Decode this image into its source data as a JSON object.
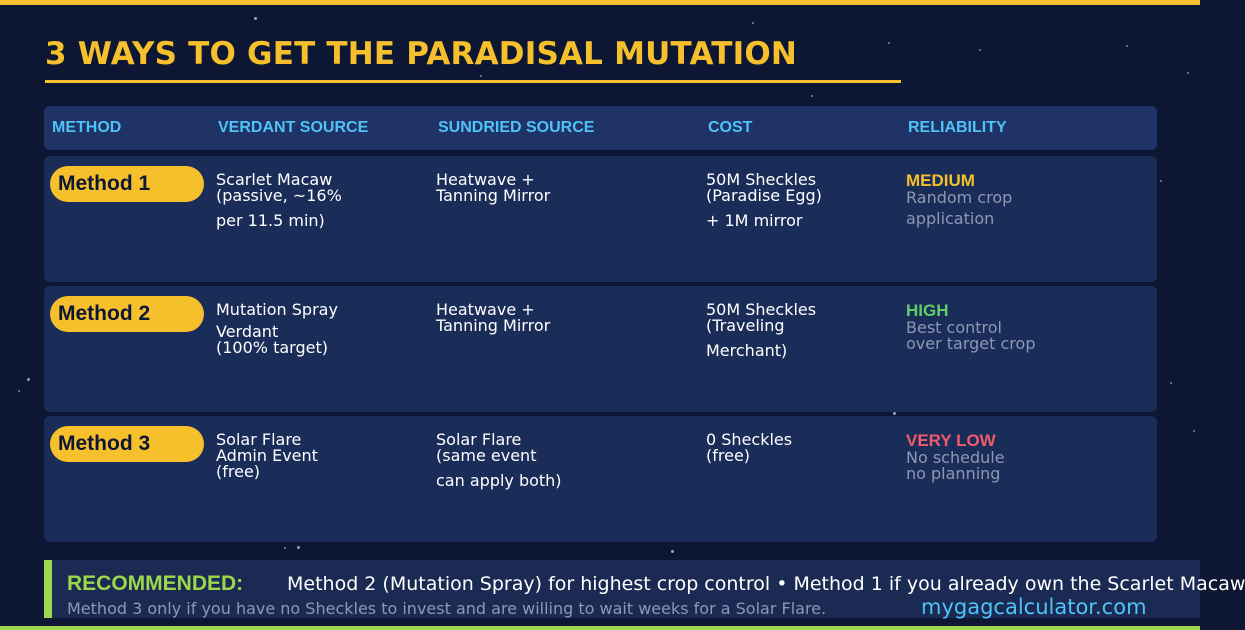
{
  "title": "3 WAYS TO GET THE PARADISAL MUTATION",
  "columns": [
    "METHOD",
    "VERDANT SOURCE",
    "SUNDRIED SOURCE",
    "COST",
    "RELIABILITY"
  ],
  "rows": [
    {
      "method": "Method 1",
      "verdant": [
        "Scarlet Macaw",
        "(passive, ~16%",
        "per 11.5 min)"
      ],
      "sundried": [
        "Heatwave +",
        "Tanning Mirror"
      ],
      "cost": [
        "50M Sheckles",
        "(Paradise Egg)",
        "+ 1M mirror"
      ],
      "reliability": {
        "level": "MEDIUM",
        "color": "#f5c02b",
        "desc": [
          "Random crop",
          "application"
        ]
      }
    },
    {
      "method": "Method 2",
      "verdant": [
        "Mutation Spray",
        "Verdant",
        "(100% target)"
      ],
      "sundried": [
        "Heatwave +",
        "Tanning Mirror"
      ],
      "cost": [
        "50M Sheckles",
        "(Traveling",
        "Merchant)"
      ],
      "reliability": {
        "level": "HIGH",
        "color": "#5fd068",
        "desc": [
          "Best control",
          "over target crop"
        ]
      }
    },
    {
      "method": "Method 3",
      "verdant": [
        "Solar Flare",
        "Admin Event",
        "(free)"
      ],
      "sundried": [
        "Solar Flare",
        "(same event",
        "can apply both)"
      ],
      "cost": [
        "0 Sheckles",
        "(free)"
      ],
      "reliability": {
        "level": "VERY LOW",
        "color": "#ef5d6c",
        "desc": [
          "No schedule",
          "no planning"
        ]
      }
    }
  ],
  "recommended": {
    "label": "RECOMMENDED:",
    "text": "Method 2 (Mutation Spray) for highest crop control  •  Method 1 if you already own the Scarlet Macaw",
    "sub": "Method 3 only if you have no Sheckles to invest and are willing to wait weeks for a Solar Flare."
  },
  "site": "mygagcalculator.com",
  "colors": {
    "accent": "#f5c02b",
    "header": "#4fc3f7",
    "recommend": "#9bd84b",
    "background": "#0d1733"
  }
}
